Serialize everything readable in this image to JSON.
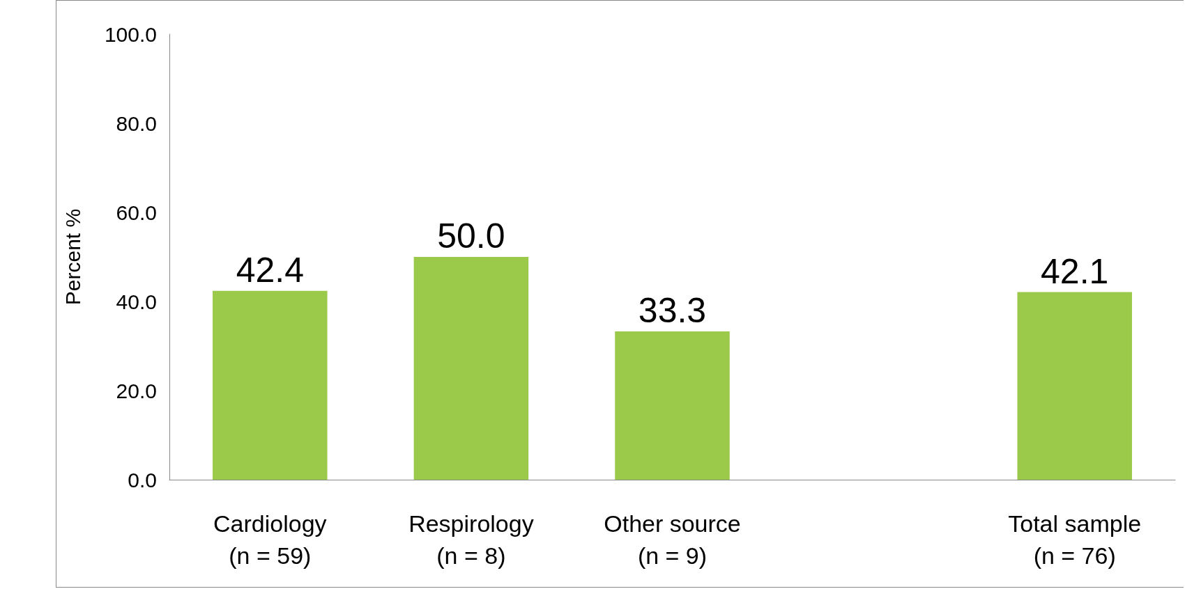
{
  "chart_data": {
    "type": "bar",
    "ylabel": "Percent %",
    "categories": [
      "Cardiology\n(n = 59)",
      "Respirology\n(n = 8)",
      "Other source\n(n = 9)",
      null,
      "Total sample\n(n = 76)"
    ],
    "values": [
      42.4,
      50.0,
      33.3,
      null,
      42.1
    ],
    "value_labels": [
      "42.4",
      "50.0",
      "33.3",
      null,
      "42.1"
    ],
    "color": "#9bc94a",
    "ylim": [
      0,
      100
    ],
    "yticks": [
      {
        "value": 0,
        "label": "0.0"
      },
      {
        "value": 20,
        "label": "20.0"
      },
      {
        "value": 40,
        "label": "40.0"
      },
      {
        "value": 60,
        "label": "60.0"
      },
      {
        "value": 80,
        "label": "80.0"
      },
      {
        "value": 100,
        "label": "100.0"
      }
    ],
    "grid": false
  }
}
